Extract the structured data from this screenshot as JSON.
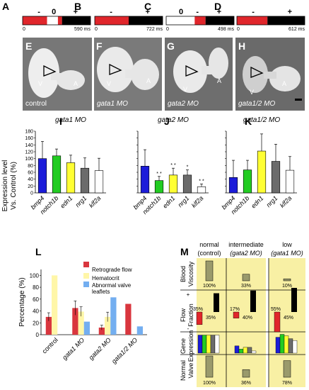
{
  "panel_labels": [
    "A",
    "B",
    "C",
    "D",
    "E",
    "F",
    "G",
    "H",
    "I",
    "J",
    "K",
    "L",
    "M"
  ],
  "timebars": [
    {
      "minus": "-",
      "zero": "0",
      "plus": "+",
      "start": "0",
      "end": "590 ms",
      "segments": [
        [
          "#ffffff",
          0.0,
          0.0
        ],
        [
          "#e0262b",
          0.0,
          0.36
        ],
        [
          "#ffffff",
          0.36,
          0.52
        ],
        [
          "#e0262b",
          0.52,
          0.58
        ],
        [
          "#000000",
          0.58,
          1.0
        ]
      ]
    },
    {
      "minus": "-",
      "plus": "+",
      "start": "0",
      "end": "722 ms",
      "segments": [
        [
          "#e0262b",
          0.0,
          0.5
        ],
        [
          "#000000",
          0.5,
          1.0
        ]
      ]
    },
    {
      "zero": "0",
      "minus": "-",
      "plus": "+",
      "start": "0",
      "end": "498 ms",
      "segments": [
        [
          "#ffffff",
          0.0,
          0.42
        ],
        [
          "#e0262b",
          0.42,
          0.58
        ],
        [
          "#000000",
          0.58,
          1.0
        ]
      ]
    },
    {
      "minus": "-",
      "plus": "+",
      "start": "0",
      "end": "612 ms",
      "segments": [
        [
          "#e0262b",
          0.0,
          0.45
        ],
        [
          "#000000",
          0.45,
          1.0
        ]
      ]
    }
  ],
  "photos": [
    {
      "caption": "control",
      "v": "V",
      "a": "A"
    },
    {
      "caption": "gata1 MO",
      "v": "V",
      "a": "A"
    },
    {
      "caption": "gata2 MO",
      "v": "V",
      "a": "A"
    },
    {
      "caption": "gata1/2 MO",
      "v": "V",
      "a": "A"
    }
  ],
  "expression_axis_label": "Expression level\nVs. Control (%)",
  "bar_colors": [
    "#1c1cd9",
    "#22cc22",
    "#ffff33",
    "#6b6b6b",
    "#ffffff"
  ],
  "chart_data": [
    {
      "type": "bar",
      "title": "gata1 MO",
      "categories": [
        "bmp4",
        "notch1b",
        "edn1",
        "nrg1",
        "klf2a"
      ],
      "values": [
        100,
        108,
        88,
        72,
        65
      ],
      "errors": [
        50,
        20,
        22,
        30,
        36
      ],
      "ylim": [
        0,
        180
      ],
      "yticks": [
        0,
        20,
        40,
        60,
        80,
        100,
        120,
        140,
        160,
        180
      ]
    },
    {
      "type": "bar",
      "title": "gata2 MO",
      "categories": [
        "bmp4",
        "notch1b",
        "edn1",
        "nrg1",
        "klf2a"
      ],
      "values": [
        78,
        36,
        52,
        52,
        18
      ],
      "errors": [
        48,
        12,
        20,
        15,
        8
      ],
      "stars": [
        "",
        "**",
        "**",
        "*",
        "**"
      ],
      "ylim": [
        0,
        180
      ]
    },
    {
      "type": "bar",
      "title": "gata1/2 MO",
      "categories": [
        "bmp4",
        "notch1b",
        "edn1",
        "nrg1",
        "klf2a"
      ],
      "values": [
        45,
        67,
        122,
        92,
        66
      ],
      "errors": [
        50,
        28,
        50,
        50,
        40
      ],
      "ylim": [
        0,
        180
      ]
    },
    {
      "type": "bar",
      "ylabel": "Percentage (%)",
      "categories": [
        "control",
        "gata1 MO",
        "gata2 MO",
        "gata1/2 MO"
      ],
      "ylim": [
        0,
        110
      ],
      "yticks": [
        0,
        20,
        40,
        60,
        80,
        100
      ],
      "series": [
        {
          "name": "Retrograde flow",
          "color": "#d9363e",
          "values": [
            30,
            45,
            12,
            52
          ],
          "errors": [
            7,
            12,
            4,
            0
          ]
        },
        {
          "name": "Hematocrit",
          "color": "#fff6a8",
          "values": [
            100,
            39,
            30,
            null
          ],
          "errors": [
            0,
            8,
            8,
            0
          ]
        },
        {
          "name": "Abnormal valve leaflets",
          "color": "#73aef0",
          "values": [
            0,
            22,
            63,
            14
          ],
          "errors": [
            0,
            0,
            0,
            0
          ]
        }
      ]
    }
  ],
  "table_m": {
    "columns": [
      "normal\n(control)",
      "intermediate\n(gata2 MO)",
      "low\n(gata1 MO)"
    ],
    "rows": [
      "Blood\nViscosity",
      "Flow\nFraction",
      "Gene\nExpression",
      "Normal\nValve"
    ],
    "viscosity": [
      {
        "v": 100,
        "label": "100%"
      },
      {
        "v": 33,
        "label": "33%"
      },
      {
        "v": 10,
        "label": "10%"
      }
    ],
    "flow": [
      {
        "neg": 35,
        "pos": 35,
        "neg_label": "35%",
        "pos_label": "35%"
      },
      {
        "neg": 17,
        "pos": 40,
        "neg_label": "17%",
        "pos_label": "40%"
      },
      {
        "neg": 55,
        "pos": 45,
        "neg_label": "55%",
        "pos_label": "45%"
      }
    ],
    "flow_plus": "+",
    "flow_minus": "-",
    "gene": [
      [
        100,
        100,
        100,
        100,
        100
      ],
      [
        40,
        22,
        32,
        32,
        12
      ],
      [
        88,
        104,
        96,
        80,
        70
      ]
    ],
    "valve": [
      {
        "v": 100,
        "label": "100%"
      },
      {
        "v": 36,
        "label": "36%"
      },
      {
        "v": 78,
        "label": "78%"
      }
    ]
  }
}
